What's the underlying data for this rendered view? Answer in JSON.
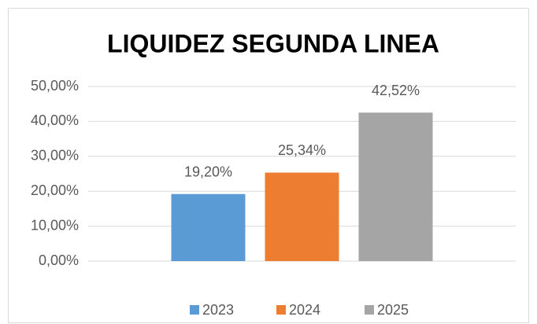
{
  "chart_data": {
    "type": "bar",
    "title": "LIQUIDEZ SEGUNDA LINEA",
    "categories": [
      null
    ],
    "series": [
      {
        "name": "2023",
        "color": "#5b9bd5",
        "values": [
          19.2
        ],
        "value_labels": [
          "19,20%"
        ]
      },
      {
        "name": "2024",
        "color": "#ed7d31",
        "values": [
          25.34
        ],
        "value_labels": [
          "25,34%"
        ]
      },
      {
        "name": "2025",
        "color": "#a5a5a5",
        "values": [
          42.52
        ],
        "value_labels": [
          "42,52%"
        ]
      }
    ],
    "ylim": [
      0,
      50
    ],
    "yticks": [
      {
        "value": 0,
        "label": "0,00%"
      },
      {
        "value": 10,
        "label": "10,00%"
      },
      {
        "value": 20,
        "label": "20,00%"
      },
      {
        "value": 30,
        "label": "30,00%"
      },
      {
        "value": 40,
        "label": "40,00%"
      },
      {
        "value": 50,
        "label": "50,00%"
      }
    ],
    "grid": true,
    "legend": "bottom"
  }
}
